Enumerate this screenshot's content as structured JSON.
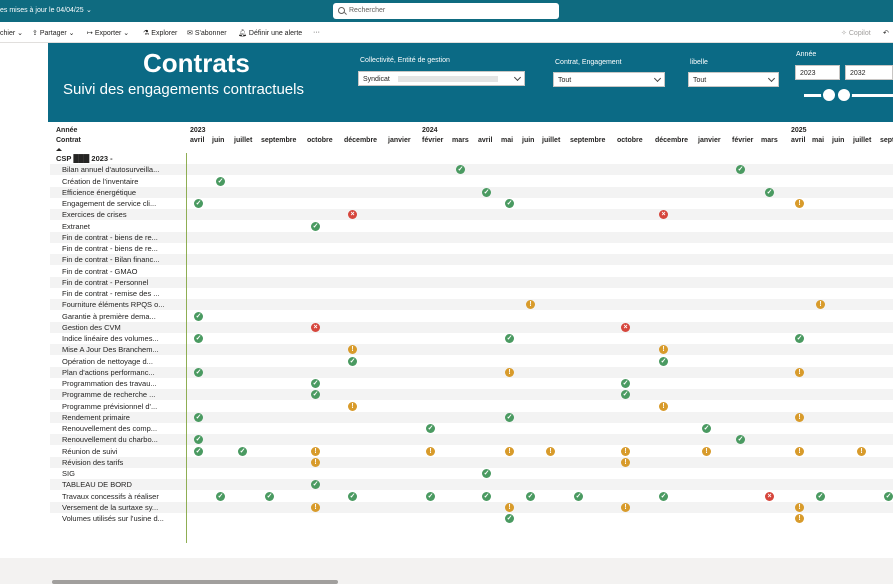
{
  "topbar": {
    "updated": "es mises à jour le 04/04/25",
    "search_placeholder": "Rechercher"
  },
  "toolbar": {
    "file": "chier",
    "share": "Partager",
    "export": "Exporter",
    "explore": "Explorer",
    "subscribe": "S'abonner",
    "alert": "Définir une alerte",
    "more": "···",
    "copilot": "Copilot"
  },
  "header": {
    "title": "Contrats",
    "subtitle": "Suivi des engagements contractuels",
    "slicers": {
      "collectivite": {
        "label": "Collectivité, Entité de gestion",
        "value": "Syndicat"
      },
      "contrat": {
        "label": "Contrat, Engagement",
        "value": "Tout"
      },
      "libelle": {
        "label": "libelle",
        "value": "Tout"
      },
      "annee": {
        "label": "Année",
        "from": "2023",
        "to": "2032"
      }
    }
  },
  "matrix": {
    "col_header_line1": "Année",
    "col_header_line2": "Contrat",
    "years": [
      {
        "label": "2023",
        "col": 0
      },
      {
        "label": "2024",
        "col": 7
      },
      {
        "label": "2025",
        "col": 19
      }
    ],
    "months": [
      "avril",
      "juin",
      "juillet",
      "septembre",
      "octobre",
      "décembre",
      "janvier",
      "février",
      "mars",
      "avril",
      "mai",
      "juin",
      "juillet",
      "septembre",
      "octobre",
      "décembre",
      "janvier",
      "février",
      "mars",
      "avril",
      "mai",
      "juin",
      "juillet",
      "sept"
    ],
    "group_label": "CSP ███ 2023 -",
    "rows": [
      {
        "label": "Bilan annuel d'autosurveilla...",
        "cells": [
          [
            8,
            "ok"
          ],
          [
            17,
            "ok"
          ]
        ]
      },
      {
        "label": "Création de l'inventaire",
        "cells": [
          [
            1,
            "ok"
          ]
        ]
      },
      {
        "label": "Efficience énergétique",
        "cells": [
          [
            9,
            "ok"
          ],
          [
            18,
            "ok"
          ]
        ]
      },
      {
        "label": "Engagement de service cli...",
        "cells": [
          [
            0,
            "ok"
          ],
          [
            10,
            "ok"
          ],
          [
            19,
            "warn"
          ]
        ]
      },
      {
        "label": "Exercices de crises",
        "cells": [
          [
            5,
            "bad"
          ],
          [
            15,
            "bad"
          ]
        ]
      },
      {
        "label": "Extranet",
        "cells": [
          [
            4,
            "ok"
          ]
        ]
      },
      {
        "label": "Fin de contrat - biens de re...",
        "cells": []
      },
      {
        "label": "Fin de contrat - biens de re...",
        "cells": []
      },
      {
        "label": "Fin de contrat - Bilan financ...",
        "cells": []
      },
      {
        "label": "Fin de contrat - GMAO",
        "cells": []
      },
      {
        "label": "Fin de contrat - Personnel",
        "cells": []
      },
      {
        "label": "Fin de contrat - remise des ...",
        "cells": []
      },
      {
        "label": "Fourniture éléments RPQS o...",
        "cells": [
          [
            11,
            "warn"
          ],
          [
            20,
            "warn"
          ]
        ]
      },
      {
        "label": "Garantie à première dema...",
        "cells": [
          [
            0,
            "ok"
          ]
        ]
      },
      {
        "label": "Gestion des CVM",
        "cells": [
          [
            4,
            "bad"
          ],
          [
            14,
            "bad"
          ]
        ]
      },
      {
        "label": "Indice linéaire des volumes...",
        "cells": [
          [
            0,
            "ok"
          ],
          [
            10,
            "ok"
          ],
          [
            19,
            "ok"
          ]
        ]
      },
      {
        "label": "Mise A Jour Des Branchem...",
        "cells": [
          [
            5,
            "warn"
          ],
          [
            15,
            "warn"
          ]
        ]
      },
      {
        "label": "Opération de nettoyage d...",
        "cells": [
          [
            5,
            "ok"
          ],
          [
            15,
            "ok"
          ]
        ]
      },
      {
        "label": "Plan d'actions performanc...",
        "cells": [
          [
            0,
            "ok"
          ],
          [
            10,
            "warn"
          ],
          [
            19,
            "warn"
          ]
        ]
      },
      {
        "label": "Programmation des travau...",
        "cells": [
          [
            4,
            "ok"
          ],
          [
            14,
            "ok"
          ]
        ]
      },
      {
        "label": "Programme de recherche ...",
        "cells": [
          [
            4,
            "ok"
          ],
          [
            14,
            "ok"
          ]
        ]
      },
      {
        "label": "Programme prévisionnel d'...",
        "cells": [
          [
            5,
            "warn"
          ],
          [
            15,
            "warn"
          ]
        ]
      },
      {
        "label": "Rendement primaire",
        "cells": [
          [
            0,
            "ok"
          ],
          [
            10,
            "ok"
          ],
          [
            19,
            "warn"
          ]
        ]
      },
      {
        "label": "Renouvellement des comp...",
        "cells": [
          [
            7,
            "ok"
          ],
          [
            16,
            "ok"
          ]
        ]
      },
      {
        "label": "Renouvellement du charbo...",
        "cells": [
          [
            0,
            "ok"
          ],
          [
            17,
            "ok"
          ]
        ]
      },
      {
        "label": "Réunion de suivi",
        "cells": [
          [
            0,
            "ok"
          ],
          [
            2,
            "ok"
          ],
          [
            4,
            "warn"
          ],
          [
            7,
            "warn"
          ],
          [
            10,
            "warn"
          ],
          [
            12,
            "warn"
          ],
          [
            14,
            "warn"
          ],
          [
            16,
            "warn"
          ],
          [
            19,
            "warn"
          ],
          [
            22,
            "warn"
          ]
        ]
      },
      {
        "label": "Révision des tarifs",
        "cells": [
          [
            4,
            "warn"
          ],
          [
            14,
            "warn"
          ]
        ]
      },
      {
        "label": "SIG",
        "cells": [
          [
            9,
            "ok"
          ]
        ]
      },
      {
        "label": "TABLEAU DE BORD",
        "cells": [
          [
            4,
            "ok"
          ]
        ]
      },
      {
        "label": "Travaux concessifs à réaliser",
        "cells": [
          [
            1,
            "ok"
          ],
          [
            3,
            "ok"
          ],
          [
            5,
            "ok"
          ],
          [
            7,
            "ok"
          ],
          [
            9,
            "ok"
          ],
          [
            11,
            "ok"
          ],
          [
            13,
            "ok"
          ],
          [
            15,
            "ok"
          ],
          [
            18,
            "bad"
          ],
          [
            20,
            "ok"
          ],
          [
            23,
            "ok"
          ]
        ]
      },
      {
        "label": "Versement de la surtaxe sy...",
        "cells": [
          [
            4,
            "warn"
          ],
          [
            10,
            "warn"
          ],
          [
            14,
            "warn"
          ],
          [
            19,
            "warn"
          ]
        ]
      },
      {
        "label": "Volumes utilisés sur l'usine d...",
        "cells": [
          [
            10,
            "ok"
          ],
          [
            19,
            "warn"
          ]
        ]
      }
    ]
  }
}
